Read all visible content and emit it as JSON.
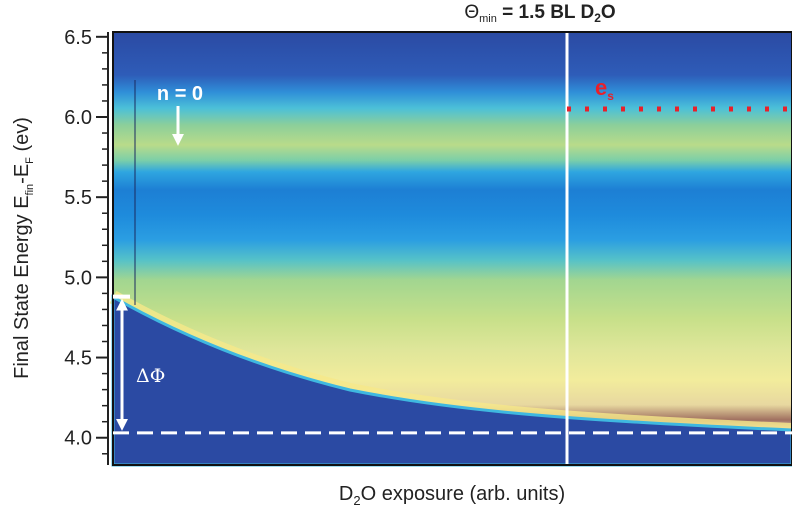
{
  "chart_data": {
    "type": "heatmap",
    "title_parts": [
      "Θ",
      "min",
      " = 1.5 BL D",
      "2",
      "O"
    ],
    "xlabel_parts": [
      "D",
      "2",
      "O exposure (arb. units)"
    ],
    "ylabel_parts": [
      "Final State Energy E",
      "fin",
      "-E",
      "F",
      " (ev)"
    ],
    "ylim": [
      3.83,
      6.53
    ],
    "yticks": [
      {
        "value": 4,
        "label": "4.0"
      },
      4.5,
      {
        "value": 5,
        "label": "5.0"
      },
      5.5,
      {
        "value": 6,
        "label": "6.0"
      },
      6.5
    ],
    "yminorticks": [
      3.9,
      4.1,
      4.2,
      4.3,
      4.4,
      4.6,
      4.7,
      4.8,
      4.9,
      5.1,
      5.2,
      5.3,
      5.4,
      5.6,
      5.7,
      5.8,
      5.9,
      6.1,
      6.2,
      6.3,
      6.4
    ],
    "hlines": [
      {
        "value": 4.03,
        "style": "dashed",
        "color": "#ffffff"
      },
      {
        "value": 6.05,
        "style": "dotted",
        "color": "#e8202a"
      }
    ],
    "state_label_parts": [
      "e",
      "s"
    ],
    "band_annotation": {
      "label": "n = 0",
      "value": 5.82
    },
    "work_function_shift": {
      "label": "ΔΦ",
      "from": 4.88,
      "to": 4.03
    }
  }
}
